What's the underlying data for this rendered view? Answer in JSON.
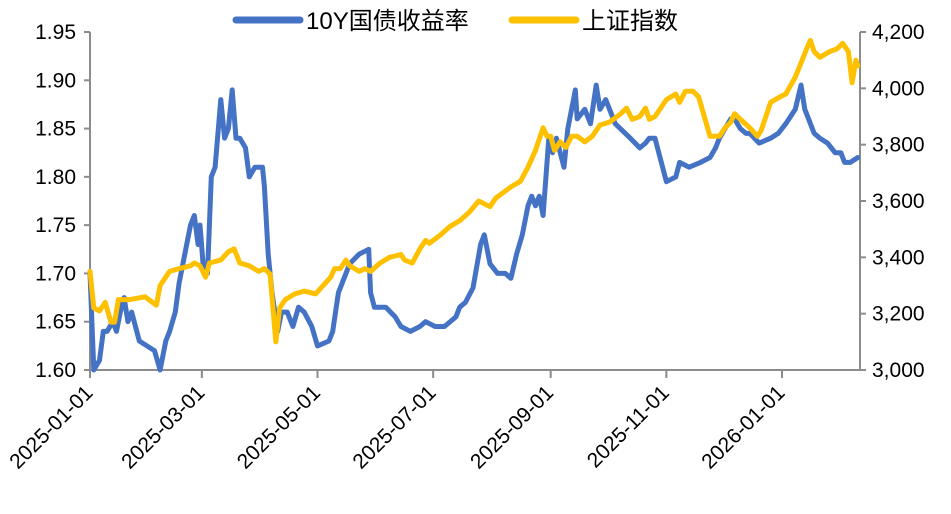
{
  "chart_data": {
    "type": "line",
    "title": "",
    "x_unit": "days since 2025-01-01",
    "x_ticks": [
      {
        "day": 0,
        "label": "2025-01-01"
      },
      {
        "day": 59,
        "label": "2025-03-01"
      },
      {
        "day": 120,
        "label": "2025-05-01"
      },
      {
        "day": 181,
        "label": "2025-07-01"
      },
      {
        "day": 243,
        "label": "2025-09-01"
      },
      {
        "day": 304,
        "label": "2025-11-01"
      },
      {
        "day": 365,
        "label": "2026-01-01"
      }
    ],
    "xlim": [
      0,
      409
    ],
    "y_left": {
      "min": 1.6,
      "max": 1.95,
      "step": 0.05,
      "labels": [
        "1.60",
        "1.65",
        "1.70",
        "1.75",
        "1.80",
        "1.85",
        "1.90",
        "1.95"
      ]
    },
    "y_right": {
      "min": 3000,
      "max": 4200,
      "step": 200,
      "labels": [
        "3,000",
        "3,200",
        "3,400",
        "3,600",
        "3,800",
        "4,000",
        "4,200"
      ]
    },
    "legend_position": "top-center",
    "series": [
      {
        "name": "10Y国债收益率",
        "axis": "left",
        "color": "#4472C4",
        "points": [
          [
            0,
            1.7
          ],
          [
            2,
            1.6
          ],
          [
            5,
            1.61
          ],
          [
            7,
            1.64
          ],
          [
            9,
            1.64
          ],
          [
            12,
            1.65
          ],
          [
            14,
            1.64
          ],
          [
            16,
            1.66
          ],
          [
            18,
            1.675
          ],
          [
            20,
            1.65
          ],
          [
            22,
            1.66
          ],
          [
            26,
            1.63
          ],
          [
            34,
            1.62
          ],
          [
            37,
            1.6
          ],
          [
            40,
            1.63
          ],
          [
            42,
            1.64
          ],
          [
            45,
            1.66
          ],
          [
            47,
            1.69
          ],
          [
            50,
            1.72
          ],
          [
            53,
            1.75
          ],
          [
            55,
            1.76
          ],
          [
            57,
            1.73
          ],
          [
            58,
            1.75
          ],
          [
            60,
            1.7
          ],
          [
            62,
            1.7
          ],
          [
            64,
            1.8
          ],
          [
            66,
            1.81
          ],
          [
            69,
            1.88
          ],
          [
            71,
            1.84
          ],
          [
            73,
            1.85
          ],
          [
            75,
            1.89
          ],
          [
            77,
            1.84
          ],
          [
            79,
            1.84
          ],
          [
            82,
            1.83
          ],
          [
            84,
            1.8
          ],
          [
            87,
            1.81
          ],
          [
            91,
            1.81
          ],
          [
            92,
            1.79
          ],
          [
            94,
            1.72
          ],
          [
            96,
            1.68
          ],
          [
            99,
            1.64
          ],
          [
            101,
            1.66
          ],
          [
            104,
            1.66
          ],
          [
            107,
            1.645
          ],
          [
            110,
            1.665
          ],
          [
            113,
            1.66
          ],
          [
            117,
            1.645
          ],
          [
            120,
            1.625
          ],
          [
            126,
            1.63
          ],
          [
            128,
            1.64
          ],
          [
            131,
            1.68
          ],
          [
            133,
            1.69
          ],
          [
            137,
            1.71
          ],
          [
            142,
            1.72
          ],
          [
            147,
            1.725
          ],
          [
            148,
            1.68
          ],
          [
            150,
            1.665
          ],
          [
            156,
            1.665
          ],
          [
            161,
            1.655
          ],
          [
            164,
            1.645
          ],
          [
            169,
            1.64
          ],
          [
            174,
            1.645
          ],
          [
            177,
            1.65
          ],
          [
            182,
            1.645
          ],
          [
            187,
            1.645
          ],
          [
            193,
            1.655
          ],
          [
            195,
            1.665
          ],
          [
            198,
            1.67
          ],
          [
            202,
            1.685
          ],
          [
            206,
            1.73
          ],
          [
            208,
            1.74
          ],
          [
            211,
            1.71
          ],
          [
            215,
            1.7
          ],
          [
            219,
            1.7
          ],
          [
            222,
            1.695
          ],
          [
            225,
            1.72
          ],
          [
            228,
            1.74
          ],
          [
            231,
            1.77
          ],
          [
            233,
            1.78
          ],
          [
            235,
            1.77
          ],
          [
            237,
            1.78
          ],
          [
            239,
            1.76
          ],
          [
            242,
            1.84
          ],
          [
            244,
            1.825
          ],
          [
            246,
            1.84
          ],
          [
            250,
            1.81
          ],
          [
            252,
            1.85
          ],
          [
            255,
            1.88
          ],
          [
            256,
            1.89
          ],
          [
            257,
            1.86
          ],
          [
            261,
            1.87
          ],
          [
            264,
            1.855
          ],
          [
            267,
            1.895
          ],
          [
            269,
            1.87
          ],
          [
            272,
            1.88
          ],
          [
            277,
            1.855
          ],
          [
            285,
            1.84
          ],
          [
            290,
            1.83
          ],
          [
            293,
            1.835
          ],
          [
            295,
            1.84
          ],
          [
            298,
            1.84
          ],
          [
            302,
            1.81
          ],
          [
            304,
            1.795
          ],
          [
            309,
            1.8
          ],
          [
            311,
            1.815
          ],
          [
            316,
            1.81
          ],
          [
            322,
            1.815
          ],
          [
            327,
            1.82
          ],
          [
            330,
            1.83
          ],
          [
            332,
            1.84
          ],
          [
            338,
            1.86
          ],
          [
            340,
            1.86
          ],
          [
            343,
            1.85
          ],
          [
            346,
            1.845
          ],
          [
            348,
            1.845
          ],
          [
            353,
            1.835
          ],
          [
            359,
            1.84
          ],
          [
            363,
            1.845
          ],
          [
            367,
            1.855
          ],
          [
            372,
            1.87
          ],
          [
            375,
            1.895
          ],
          [
            377,
            1.87
          ],
          [
            380,
            1.855
          ],
          [
            382,
            1.845
          ],
          [
            385,
            1.84
          ],
          [
            389,
            1.835
          ],
          [
            393,
            1.825
          ],
          [
            396,
            1.825
          ],
          [
            398,
            1.815
          ],
          [
            401,
            1.815
          ],
          [
            405,
            1.82
          ]
        ]
      },
      {
        "name": "上证指数",
        "axis": "right",
        "color": "#FFC000",
        "points": [
          [
            0,
            3350
          ],
          [
            2,
            3220
          ],
          [
            5,
            3210
          ],
          [
            8,
            3240
          ],
          [
            11,
            3170
          ],
          [
            13,
            3170
          ],
          [
            15,
            3250
          ],
          [
            21,
            3250
          ],
          [
            29,
            3260
          ],
          [
            35,
            3230
          ],
          [
            37,
            3300
          ],
          [
            42,
            3350
          ],
          [
            47,
            3360
          ],
          [
            53,
            3370
          ],
          [
            55,
            3380
          ],
          [
            58,
            3370
          ],
          [
            61,
            3330
          ],
          [
            63,
            3380
          ],
          [
            69,
            3390
          ],
          [
            73,
            3420
          ],
          [
            76,
            3430
          ],
          [
            79,
            3380
          ],
          [
            84,
            3370
          ],
          [
            89,
            3350
          ],
          [
            92,
            3360
          ],
          [
            95,
            3340
          ],
          [
            98,
            3100
          ],
          [
            100,
            3220
          ],
          [
            103,
            3250
          ],
          [
            108,
            3270
          ],
          [
            113,
            3280
          ],
          [
            119,
            3270
          ],
          [
            127,
            3330
          ],
          [
            129,
            3360
          ],
          [
            132,
            3360
          ],
          [
            135,
            3390
          ],
          [
            137,
            3370
          ],
          [
            142,
            3350
          ],
          [
            145,
            3360
          ],
          [
            148,
            3350
          ],
          [
            153,
            3380
          ],
          [
            158,
            3400
          ],
          [
            164,
            3410
          ],
          [
            166,
            3390
          ],
          [
            170,
            3380
          ],
          [
            174,
            3430
          ],
          [
            177,
            3460
          ],
          [
            179,
            3450
          ],
          [
            185,
            3480
          ],
          [
            190,
            3510
          ],
          [
            195,
            3530
          ],
          [
            200,
            3560
          ],
          [
            205,
            3600
          ],
          [
            208,
            3590
          ],
          [
            211,
            3580
          ],
          [
            214,
            3610
          ],
          [
            216,
            3620
          ],
          [
            222,
            3650
          ],
          [
            227,
            3670
          ],
          [
            231,
            3720
          ],
          [
            235,
            3780
          ],
          [
            237,
            3820
          ],
          [
            239,
            3860
          ],
          [
            241,
            3830
          ],
          [
            243,
            3830
          ],
          [
            245,
            3780
          ],
          [
            248,
            3810
          ],
          [
            251,
            3790
          ],
          [
            254,
            3830
          ],
          [
            257,
            3830
          ],
          [
            261,
            3810
          ],
          [
            265,
            3830
          ],
          [
            269,
            3870
          ],
          [
            274,
            3880
          ],
          [
            280,
            3910
          ],
          [
            283,
            3930
          ],
          [
            286,
            3890
          ],
          [
            290,
            3900
          ],
          [
            293,
            3930
          ],
          [
            295,
            3890
          ],
          [
            298,
            3900
          ],
          [
            304,
            3960
          ],
          [
            309,
            3980
          ],
          [
            311,
            3950
          ],
          [
            314,
            3990
          ],
          [
            318,
            3990
          ],
          [
            321,
            3970
          ],
          [
            324,
            3900
          ],
          [
            327,
            3830
          ],
          [
            332,
            3830
          ],
          [
            335,
            3860
          ],
          [
            338,
            3880
          ],
          [
            340,
            3910
          ],
          [
            343,
            3890
          ],
          [
            348,
            3860
          ],
          [
            352,
            3830
          ],
          [
            354,
            3850
          ],
          [
            359,
            3950
          ],
          [
            364,
            3970
          ],
          [
            367,
            3980
          ],
          [
            372,
            4040
          ],
          [
            375,
            4090
          ],
          [
            378,
            4140
          ],
          [
            380,
            4170
          ],
          [
            382,
            4130
          ],
          [
            385,
            4110
          ],
          [
            390,
            4130
          ],
          [
            394,
            4140
          ],
          [
            397,
            4160
          ],
          [
            400,
            4130
          ],
          [
            402,
            4020
          ],
          [
            404,
            4100
          ],
          [
            405,
            4080
          ]
        ]
      }
    ]
  }
}
